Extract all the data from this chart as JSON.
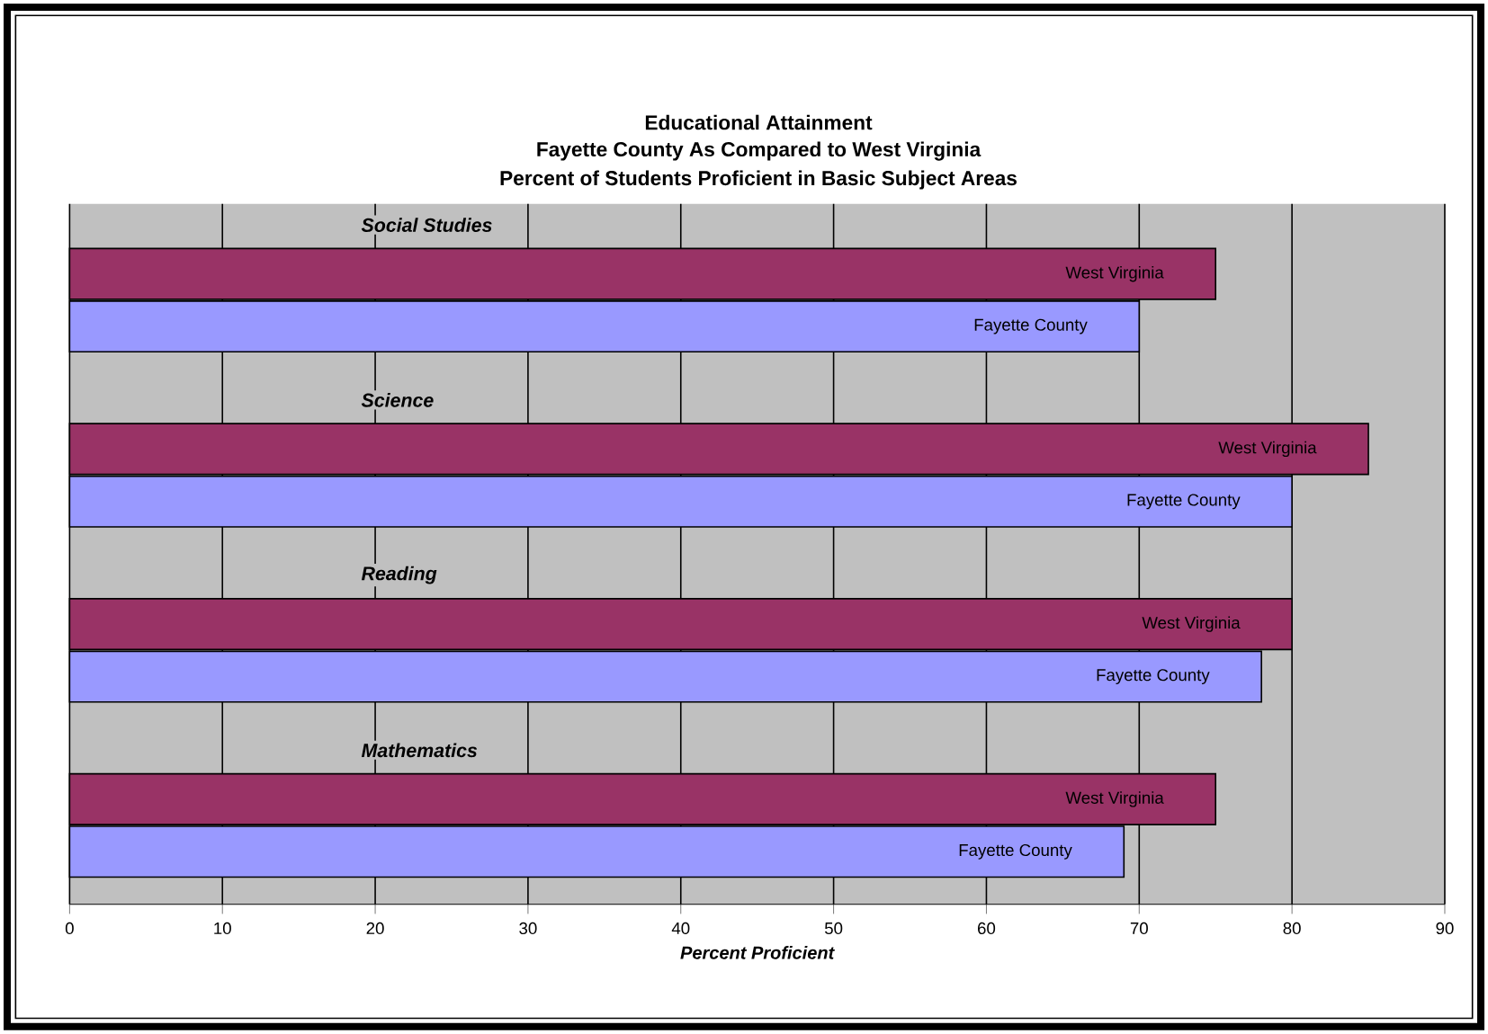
{
  "chart_data": {
    "type": "bar",
    "orientation": "horizontal",
    "title": "Educational Attainment",
    "subtitle": "Fayette County As Compared to West Virginia",
    "annotations": [
      "Percent of Students Proficient in Basic Subject Areas"
    ],
    "xlabel": "Percent Proficient",
    "categories": [
      "Social Studies",
      "Science",
      "Reading",
      "Mathematics"
    ],
    "series": [
      {
        "name": "West Virginia",
        "color": "#993366",
        "values": [
          75,
          85,
          80,
          75
        ]
      },
      {
        "name": "Fayette County",
        "color": "#9999ff",
        "values": [
          70,
          80,
          78,
          69
        ]
      }
    ],
    "xlim": [
      0,
      90
    ],
    "xticks": [
      0,
      10,
      20,
      30,
      40,
      50,
      60,
      70,
      80,
      90
    ],
    "grid": "x",
    "legend": false
  }
}
